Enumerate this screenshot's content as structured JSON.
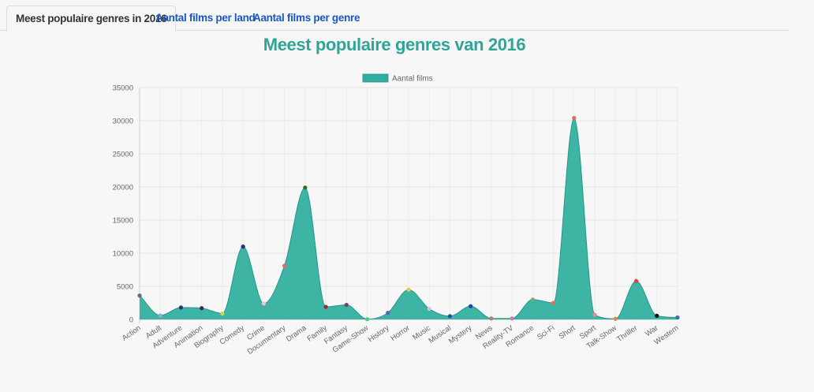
{
  "tabs": [
    {
      "label": "Meest populaire genres in 2016",
      "active": true
    },
    {
      "label": "Aantal films per land",
      "active": false
    },
    {
      "label": "Aantal films per genre",
      "active": false
    }
  ],
  "colors": {
    "accent": "#2fa597",
    "fill": "#2fae9e",
    "link": "#1a56c9"
  },
  "chart_data": {
    "type": "area",
    "title": "Meest populaire genres van 2016",
    "legend": "top",
    "grid": true,
    "ylim": [
      0,
      35000
    ],
    "yticks": [
      "0",
      "5000",
      "10000",
      "15000",
      "20000",
      "25000",
      "30000",
      "35000"
    ],
    "categories": [
      "Action",
      "Adult",
      "Adventure",
      "Animation",
      "Biography",
      "Comedy",
      "Crime",
      "Documentary",
      "Drama",
      "Family",
      "Fantasy",
      "Game-Show",
      "History",
      "Horror",
      "Music",
      "Musical",
      "Mystery",
      "News",
      "Reality-TV",
      "Romance",
      "Sci-Fi",
      "Short",
      "Sport",
      "Talk-Show",
      "Thriller",
      "War",
      "Western"
    ],
    "series": [
      {
        "name": "Aantal films",
        "color": "#2fae9e",
        "values": [
          3600,
          600,
          1800,
          1700,
          900,
          11000,
          2400,
          8100,
          19900,
          1900,
          2200,
          40,
          1000,
          4500,
          1600,
          500,
          2000,
          150,
          150,
          3000,
          2500,
          30400,
          700,
          100,
          5800,
          550,
          300
        ],
        "point_colors": [
          "#6b6b6b",
          "#8ab0d8",
          "#2c2c7a",
          "#4b1f5e",
          "#d8d260",
          "#2a2a80",
          "#e0c8e8",
          "#e06a6a",
          "#2e6b2e",
          "#a02525",
          "#8a3a6a",
          "#40d080",
          "#6060c0",
          "#e8c850",
          "#c8c8d8",
          "#2a4a9a",
          "#2040b0",
          "#b08080",
          "#c080c0",
          "#70b070",
          "#e07050",
          "#e07050",
          "#e09090",
          "#d09040",
          "#e04040",
          "#101010",
          "#4070b0"
        ]
      }
    ]
  }
}
